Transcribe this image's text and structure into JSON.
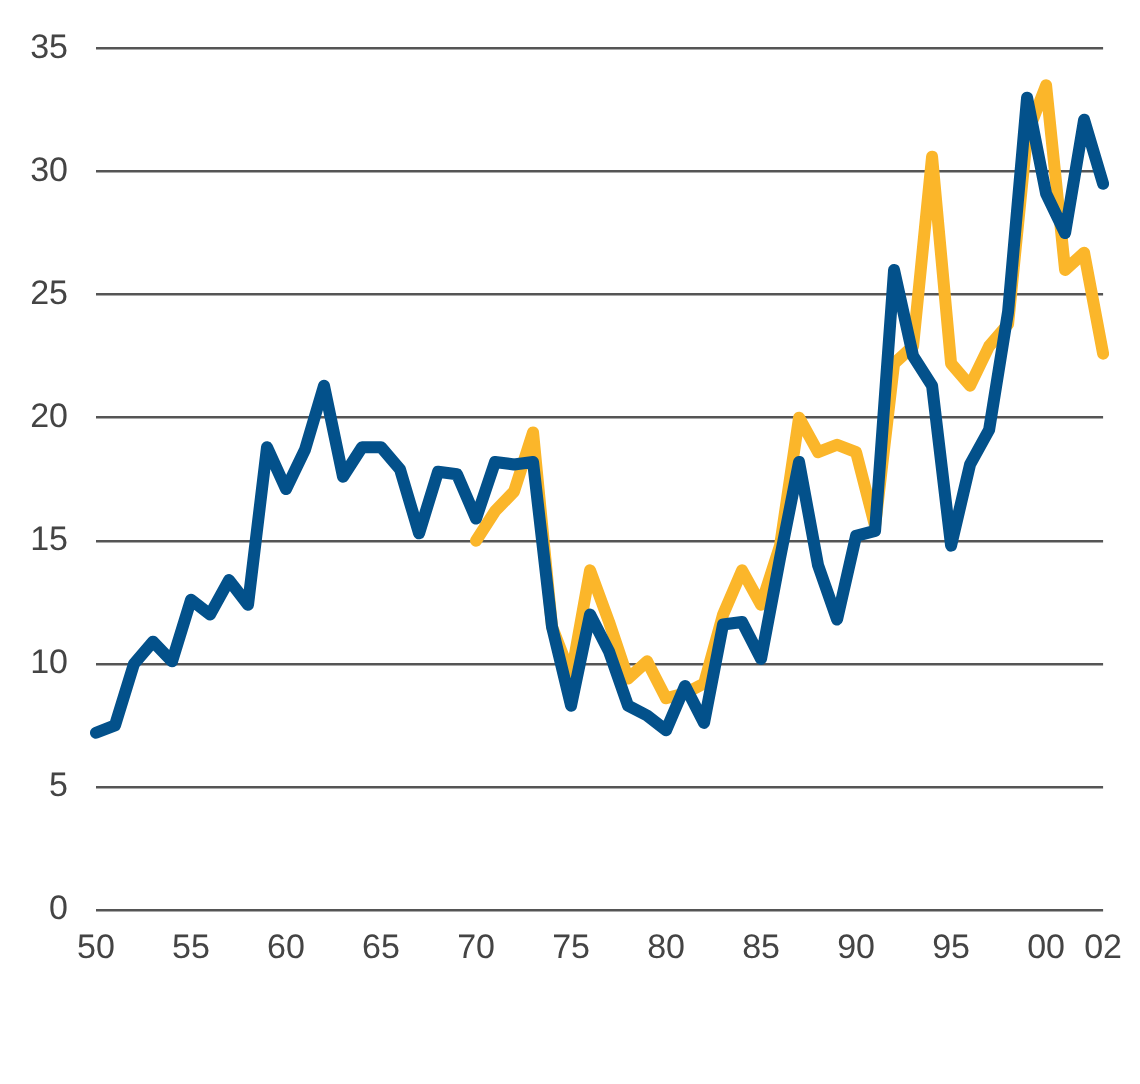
{
  "chart_data": {
    "type": "line",
    "categories": [
      "50",
      null,
      null,
      null,
      null,
      "55",
      null,
      null,
      null,
      null,
      "60",
      null,
      null,
      null,
      null,
      "65",
      null,
      null,
      null,
      null,
      "70",
      null,
      null,
      null,
      null,
      "75",
      null,
      null,
      null,
      null,
      "80",
      null,
      null,
      null,
      null,
      "85",
      null,
      null,
      null,
      null,
      "90",
      null,
      null,
      null,
      null,
      "95",
      null,
      null,
      null,
      null,
      "00",
      null,
      null,
      "02"
    ],
    "series": [
      {
        "color": "#fbb62a",
        "values": [
          null,
          null,
          null,
          null,
          null,
          null,
          null,
          null,
          null,
          null,
          null,
          null,
          null,
          null,
          null,
          null,
          null,
          null,
          null,
          null,
          15.0,
          16.2,
          17.0,
          19.4,
          11.5,
          9.5,
          13.8,
          11.7,
          9.4,
          10.1,
          8.6,
          8.8,
          9.2,
          12.0,
          13.8,
          12.4,
          14.8,
          20.0,
          18.6,
          18.9,
          18.6,
          15.6,
          22.2,
          22.9,
          30.6,
          22.2,
          21.3,
          22.9,
          23.8,
          31.5,
          33.5,
          26.0,
          26.7,
          22.6
        ]
      },
      {
        "color": "#03518b",
        "values": [
          7.2,
          7.5,
          10.0,
          10.9,
          10.1,
          12.6,
          12.0,
          13.4,
          12.4,
          18.8,
          17.1,
          18.7,
          21.3,
          17.6,
          18.8,
          18.8,
          17.9,
          15.3,
          17.8,
          17.7,
          15.9,
          18.2,
          18.1,
          18.2,
          11.5,
          8.3,
          12.0,
          10.5,
          8.3,
          7.9,
          7.3,
          9.1,
          7.6,
          11.6,
          11.7,
          10.2,
          14.3,
          18.2,
          14.0,
          11.8,
          15.2,
          15.4,
          26.0,
          22.5,
          21.3,
          14.8,
          18.1,
          19.5,
          24.3,
          33.0,
          29.1,
          27.5,
          32.1,
          29.5
        ]
      }
    ],
    "ylim": [
      0,
      35
    ],
    "yticks": [
      0,
      5,
      10,
      15,
      20,
      25,
      30,
      35
    ],
    "grid": "y",
    "legend": false,
    "marker": "none",
    "line_style": "solid"
  }
}
